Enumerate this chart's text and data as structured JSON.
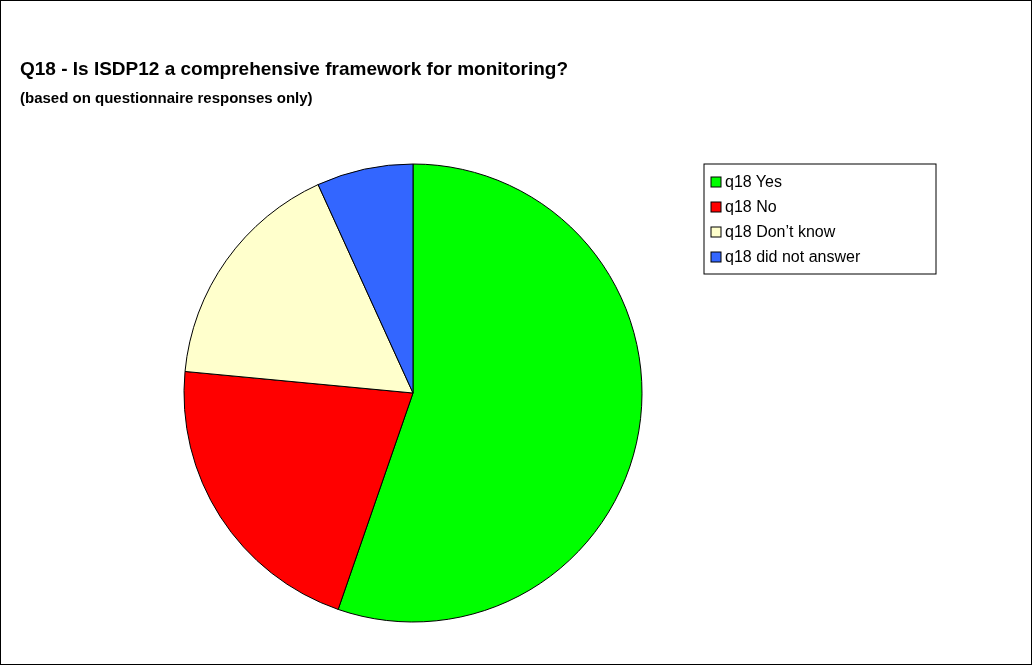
{
  "chart_data": {
    "type": "pie",
    "title": "Q18 - Is ISDP12 a comprehensive framework for monitoring?",
    "subtitle": "(based on questionnaire responses only)",
    "categories": [
      "q18 Yes",
      "q18 No",
      "q18 Don’t know",
      "q18 did not answer"
    ],
    "values": [
      55.3,
      21.2,
      16.7,
      6.8
    ],
    "colors": [
      "#00ff00",
      "#ff0000",
      "#ffffcc",
      "#3366ff"
    ],
    "legend": "top right"
  }
}
